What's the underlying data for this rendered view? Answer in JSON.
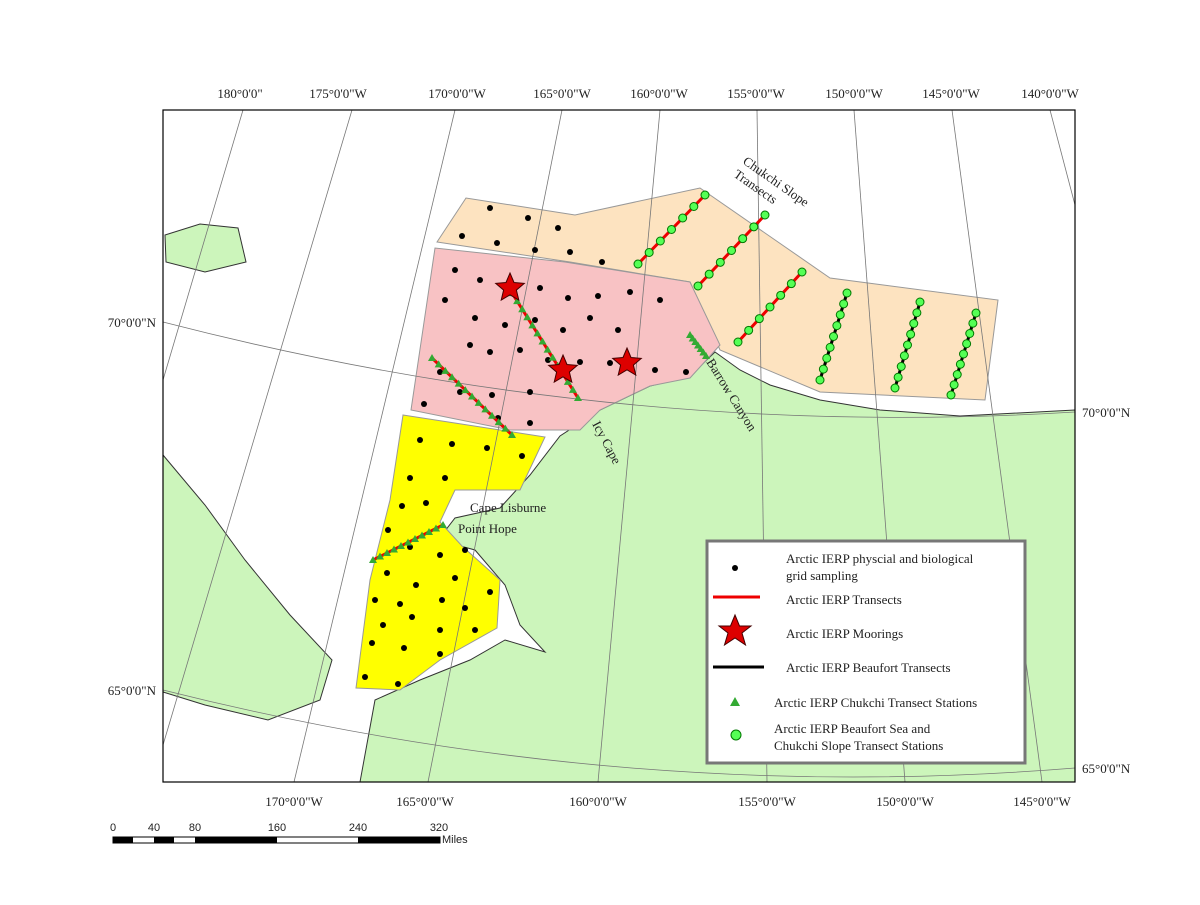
{
  "graticule": {
    "top": [
      "180°0'0\"",
      "175°0'0\"W",
      "170°0'0\"W",
      "165°0'0\"W",
      "160°0'0\"W",
      "155°0'0\"W",
      "150°0'0\"W",
      "145°0'0\"W",
      "140°0'0\"W"
    ],
    "bottom": [
      "170°0'0\"W",
      "165°0'0\"W",
      "160°0'0\"W",
      "155°0'0\"W",
      "150°0'0\"W",
      "145°0'0\"W"
    ],
    "left": [
      "70°0'0\"N",
      "65°0'0\"N"
    ],
    "right": [
      "70°0'0\"N",
      "65°0'0\"N"
    ]
  },
  "places": {
    "chukchi_slope": [
      "Chukchi Slope",
      "Transects"
    ],
    "icy_cape": "Icy Cape",
    "barrow_canyon": "Barrow Canyon",
    "cape_lisburne": "Cape Lisburne",
    "point_hope": "Point Hope"
  },
  "legend": {
    "items": [
      [
        "Arctic IERP physcial and biological",
        "grid sampling"
      ],
      [
        "Arctic IERP Transects"
      ],
      [
        "Arctic IERP Moorings"
      ],
      [
        "Arctic IERP Beaufort Transects"
      ],
      [
        "Arctic IERP Chukchi Transect Stations"
      ],
      [
        "Arctic IERP Beaufort Sea and",
        "Chukchi Slope Transect Stations"
      ]
    ]
  },
  "scale_bar": {
    "labels": [
      "0",
      "40",
      "80",
      "160",
      "240",
      "320"
    ],
    "unit": "Miles"
  }
}
